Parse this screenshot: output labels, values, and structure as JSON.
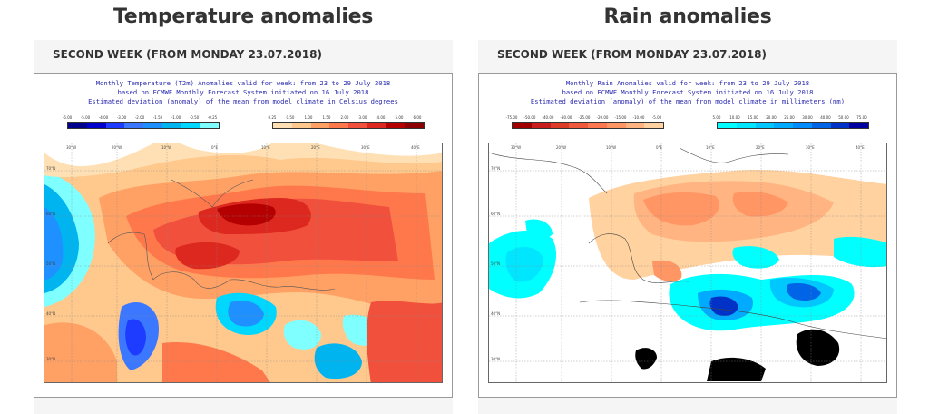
{
  "left": {
    "title": "Temperature anomalies",
    "week_label": "SECOND WEEK (FROM MONDAY 23.07.2018)",
    "caption": [
      "Monthly Temperature (T2m) Anomalies valid for week: from 23 to 29 July 2018",
      "based on ECMWF Monthly Forecast System initiated on 16 July 2018",
      "Estimated deviation (anomaly) of the mean from model climate in Celsius degrees"
    ],
    "legend_cold": [
      "-6.00",
      "-5.00",
      "-4.00",
      "-3.00",
      "-2.00",
      "-1.50",
      "-1.00",
      "-0.50",
      "-0.25"
    ],
    "legend_warm": [
      "0.25",
      "0.50",
      "1.00",
      "1.50",
      "2.00",
      "3.00",
      "4.00",
      "5.00",
      "6.00"
    ],
    "legend_cold_colors": [
      "#00008b",
      "#0000cd",
      "#1e3cff",
      "#3c78ff",
      "#1e90ff",
      "#00b4f0",
      "#00d7ff",
      "#7fffff"
    ],
    "legend_warm_colors": [
      "#ffe0b4",
      "#ffc88c",
      "#ffa064",
      "#ff784b",
      "#f0503c",
      "#dc281e",
      "#b40000",
      "#8b0000"
    ]
  },
  "right": {
    "title": "Rain anomalies",
    "week_label": "SECOND WEEK (FROM MONDAY 23.07.2018)",
    "caption": [
      "Monthly Rain Anomalies valid for week: from 23 to 29 July 2018",
      "based on ECMWF Monthly Forecast System initiated on 16 July 2018",
      "Estimated deviation (anomaly) of the mean from model climate in millimeters (mm)"
    ],
    "legend_dry": [
      "-75.00",
      "-50.00",
      "-40.00",
      "-30.00",
      "-25.00",
      "-20.00",
      "-15.00",
      "-10.00",
      "-5.00"
    ],
    "legend_wet": [
      "5.00",
      "10.00",
      "15.00",
      "20.00",
      "25.00",
      "30.00",
      "40.00",
      "50.00",
      "75.00"
    ],
    "legend_dry_colors": [
      "#a00000",
      "#c81e1e",
      "#dc3c28",
      "#f05a3c",
      "#ff7850",
      "#ff9664",
      "#ffb482",
      "#ffd2a0"
    ],
    "legend_wet_colors": [
      "#00ffff",
      "#00e6ff",
      "#00c8ff",
      "#00aaff",
      "#008cff",
      "#0064e6",
      "#0032c8",
      "#0000a0"
    ]
  },
  "map_ticks": {
    "top": [
      "30°W",
      "20°W",
      "10°W",
      "0°E",
      "10°E",
      "20°E",
      "30°E",
      "40°E",
      "50°E"
    ],
    "left": [
      "70°N",
      "60°N",
      "50°N",
      "40°N",
      "30°N"
    ]
  }
}
